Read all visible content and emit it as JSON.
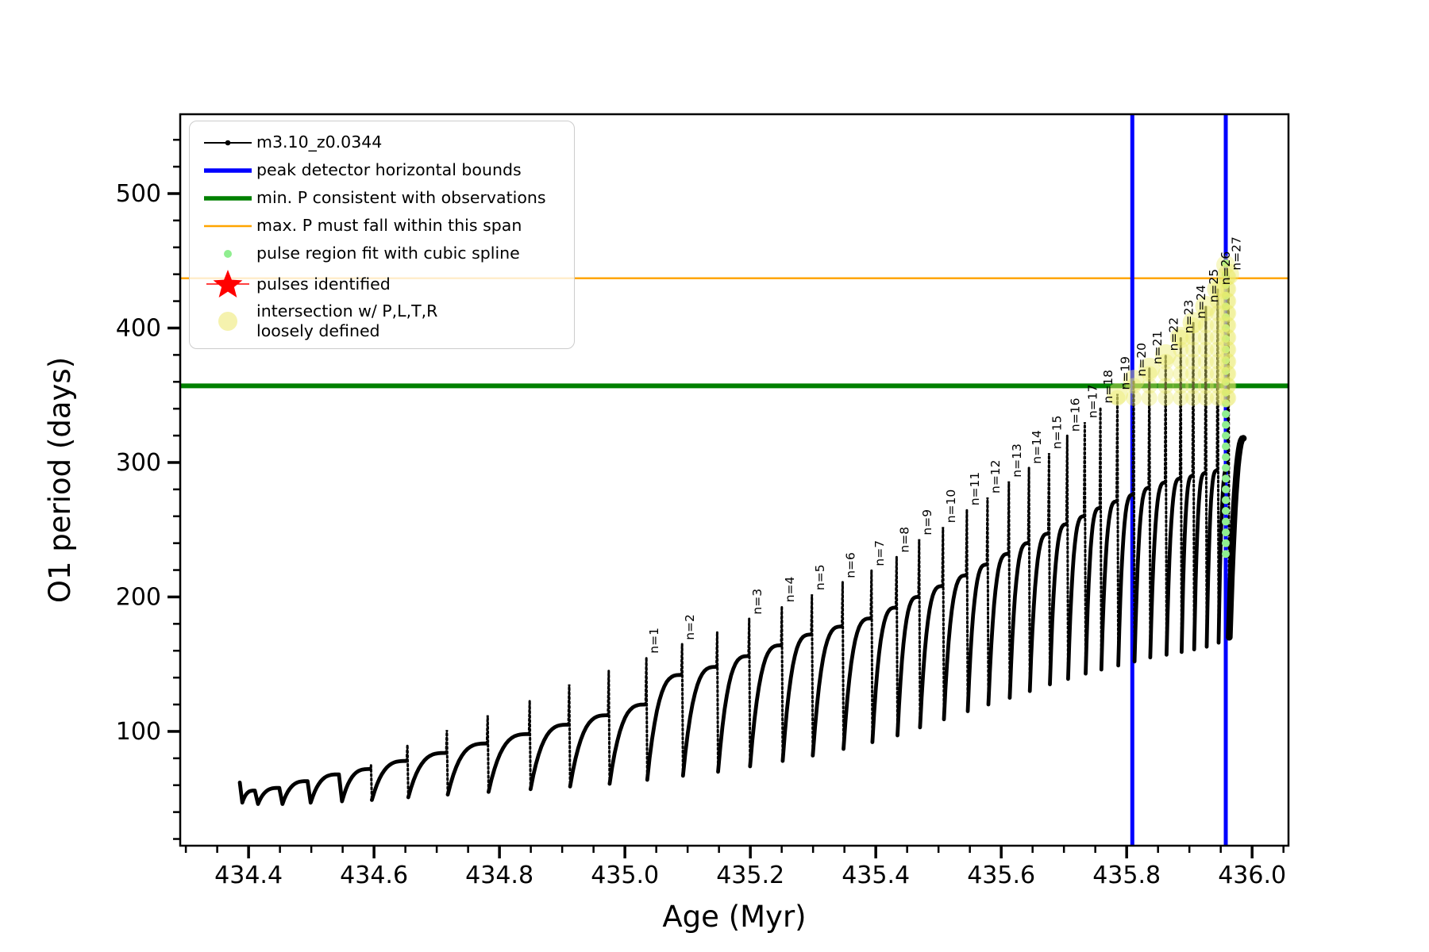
{
  "chart_data": {
    "type": "line",
    "title": "",
    "xlabel": "Age (Myr)",
    "ylabel": "O1 period (days)",
    "xlim": [
      434.291,
      436.058
    ],
    "ylim": [
      15,
      559
    ],
    "x_major_ticks": [
      434.4,
      434.6,
      434.8,
      435.0,
      435.2,
      435.4,
      435.6,
      435.8,
      436.0
    ],
    "x_minor_step": 0.05,
    "y_major_ticks": [
      100,
      200,
      300,
      400,
      500
    ],
    "y_minor_step": 20,
    "series_label": "m3.10_z0.0344",
    "colors": {
      "curve": "#000000",
      "peak_bounds": "#0000ff",
      "min_p_line": "#008000",
      "max_p_line": "#ffa500",
      "spline_dot": "#90ee90",
      "pulse_star": "#ff0000",
      "intersection_dot": "#ebeb6e"
    },
    "hlines": {
      "min_p_days": 357,
      "max_p_days": 437
    },
    "vlines_age": [
      435.809,
      435.958
    ],
    "start": {
      "age": 434.386,
      "p": 62,
      "dip_age": 434.39,
      "dip_p": 47
    },
    "pulses": [
      {
        "age": 434.41,
        "hump": 56,
        "tip": 56,
        "min": 46,
        "label": ""
      },
      {
        "age": 434.449,
        "hump": 58,
        "tip": 58,
        "min": 46,
        "label": ""
      },
      {
        "age": 434.494,
        "hump": 63,
        "tip": 63,
        "min": 47,
        "label": ""
      },
      {
        "age": 434.544,
        "hump": 68,
        "tip": 68,
        "min": 48,
        "label": ""
      },
      {
        "age": 434.594,
        "hump": 72,
        "tip": 75,
        "min": 49,
        "label": ""
      },
      {
        "age": 434.652,
        "hump": 78,
        "tip": 90,
        "min": 51,
        "label": ""
      },
      {
        "age": 434.715,
        "hump": 84,
        "tip": 101,
        "min": 53,
        "label": ""
      },
      {
        "age": 434.78,
        "hump": 91,
        "tip": 112,
        "min": 55,
        "label": ""
      },
      {
        "age": 434.847,
        "hump": 98,
        "tip": 123,
        "min": 57,
        "label": ""
      },
      {
        "age": 434.91,
        "hump": 105,
        "tip": 135,
        "min": 59,
        "label": ""
      },
      {
        "age": 434.973,
        "hump": 112,
        "tip": 145,
        "min": 61,
        "label": ""
      },
      {
        "age": 435.033,
        "hump": 120,
        "tip": 155,
        "min": 64,
        "label": "n=1"
      },
      {
        "age": 435.09,
        "hump": 142,
        "tip": 165,
        "min": 67,
        "label": "n=2"
      },
      {
        "age": 435.146,
        "hump": 148,
        "tip": 174,
        "min": 70,
        "label": ""
      },
      {
        "age": 435.197,
        "hump": 156,
        "tip": 184,
        "min": 74,
        "label": "n=3"
      },
      {
        "age": 435.249,
        "hump": 164,
        "tip": 193,
        "min": 78,
        "label": "n=4"
      },
      {
        "age": 435.297,
        "hump": 172,
        "tip": 202,
        "min": 82,
        "label": "n=5"
      },
      {
        "age": 435.346,
        "hump": 178,
        "tip": 211,
        "min": 87,
        "label": "n=6"
      },
      {
        "age": 435.392,
        "hump": 184,
        "tip": 220,
        "min": 92,
        "label": "n=7"
      },
      {
        "age": 435.432,
        "hump": 192,
        "tip": 230,
        "min": 97,
        "label": "n=8"
      },
      {
        "age": 435.468,
        "hump": 200,
        "tip": 243,
        "min": 103,
        "label": "n=9"
      },
      {
        "age": 435.506,
        "hump": 208,
        "tip": 252,
        "min": 109,
        "label": "n=10"
      },
      {
        "age": 435.544,
        "hump": 216,
        "tip": 265,
        "min": 115,
        "label": "n=11"
      },
      {
        "age": 435.577,
        "hump": 224,
        "tip": 274,
        "min": 120,
        "label": "n=12"
      },
      {
        "age": 435.611,
        "hump": 232,
        "tip": 286,
        "min": 125,
        "label": "n=13"
      },
      {
        "age": 435.643,
        "hump": 240,
        "tip": 296,
        "min": 130,
        "label": "n=14"
      },
      {
        "age": 435.675,
        "hump": 247,
        "tip": 307,
        "min": 135,
        "label": "n=15"
      },
      {
        "age": 435.704,
        "hump": 254,
        "tip": 320,
        "min": 139,
        "label": "n=16"
      },
      {
        "age": 435.732,
        "hump": 260,
        "tip": 330,
        "min": 143,
        "label": "n=17"
      },
      {
        "age": 435.757,
        "hump": 266,
        "tip": 341,
        "min": 146,
        "label": "n=18"
      },
      {
        "age": 435.784,
        "hump": 271,
        "tip": 351,
        "min": 149,
        "label": "n=19"
      },
      {
        "age": 435.81,
        "hump": 276,
        "tip": 361,
        "min": 152,
        "label": "n=20"
      },
      {
        "age": 435.835,
        "hump": 281,
        "tip": 370,
        "min": 155,
        "label": "n=21"
      },
      {
        "age": 435.861,
        "hump": 285,
        "tip": 380,
        "min": 157,
        "label": "n=22"
      },
      {
        "age": 435.885,
        "hump": 288,
        "tip": 393,
        "min": 159,
        "label": "n=23"
      },
      {
        "age": 435.905,
        "hump": 290,
        "tip": 404,
        "min": 161,
        "label": "n=24"
      },
      {
        "age": 435.925,
        "hump": 292,
        "tip": 416,
        "min": 163,
        "label": "n=25"
      },
      {
        "age": 435.944,
        "hump": 294,
        "tip": 429,
        "min": 166,
        "label": "n=26"
      },
      {
        "age": 435.961,
        "hump": 296,
        "tip": 440,
        "min": 170,
        "label": "n=27"
      }
    ],
    "hook": {
      "age_end": 435.986,
      "p_end": 318
    },
    "spline_column": {
      "age": 435.958,
      "p_min": 232,
      "p_max": 448,
      "p_step": 8
    },
    "intersection": {
      "p_start": 348,
      "p_step": 9,
      "p_top": 448
    },
    "legend": {
      "entries": [
        {
          "label": "m3.10_z0.0344"
        },
        {
          "label": "peak detector horizontal bounds"
        },
        {
          "label": "min. P consistent with observations"
        },
        {
          "label": "max. P must fall within this span"
        },
        {
          "label": "pulse region fit with cubic spline"
        },
        {
          "label": "pulses identified"
        },
        {
          "label": "intersection w/ P,L,T,R\nloosely defined"
        }
      ]
    }
  }
}
